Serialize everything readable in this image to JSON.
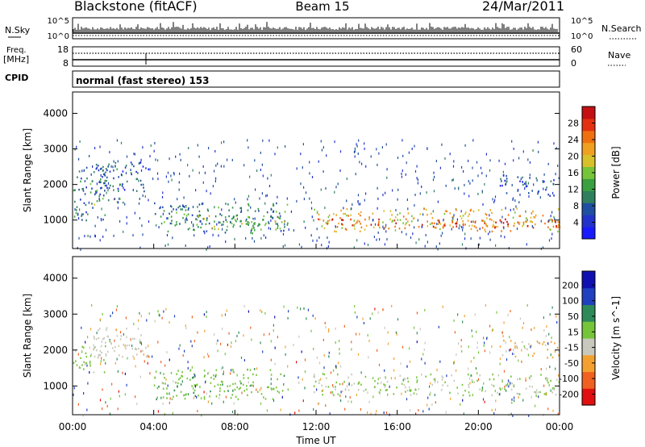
{
  "header": {
    "site": "Blackstone (fitACF)",
    "beam": "Beam 15",
    "date": "24/Mar/2011"
  },
  "noise_panel": {
    "left_label": "N.Sky",
    "right_label": "N.Search",
    "left_ticks": [
      "10^5",
      "10^0"
    ],
    "right_ticks": [
      "10^5",
      "10^0"
    ]
  },
  "freq_panel": {
    "left_label": "Freq.",
    "left_unit": "[MHz]",
    "right_label": "Nave",
    "left_ticks": [
      "18",
      "8"
    ],
    "right_ticks": [
      "60",
      "0"
    ]
  },
  "cpid_panel": {
    "label": "CPID",
    "mode_text": "normal (fast stereo) 153"
  },
  "chart_data": [
    {
      "type": "heatmap",
      "title": "",
      "ylabel": "Slant Range [km]",
      "xlabel": "Time UT",
      "x_ticks": [
        "00:00",
        "04:00",
        "08:00",
        "12:00",
        "16:00",
        "20:00",
        "00:00"
      ],
      "y_ticks": [
        "1000",
        "2000",
        "3000",
        "4000"
      ],
      "xlim_hours": [
        0,
        24
      ],
      "ylim_km": [
        200,
        4600
      ],
      "colorbar": {
        "label": "Power [dB]",
        "ticks": [
          "4",
          "8",
          "12",
          "16",
          "20",
          "24",
          "28"
        ],
        "range": [
          0,
          30
        ],
        "colors": [
          "#1a1aff",
          "#2233cc",
          "#1f4fa0",
          "#2f7f5f",
          "#3aa040",
          "#76c43a",
          "#d8c02a",
          "#f0a020",
          "#f07010",
          "#e43010",
          "#c41010"
        ]
      },
      "bands": [
        {
          "t0": 0.0,
          "t1": 1.6,
          "r0": 1000,
          "r1": 2600,
          "mean": 9
        },
        {
          "t0": 1.0,
          "t1": 3.8,
          "r0": 1800,
          "r1": 2650,
          "mean": 6
        },
        {
          "t0": 0.8,
          "t1": 2.5,
          "r0": 1450,
          "r1": 1650,
          "mean": 14
        },
        {
          "t0": 4.0,
          "t1": 10.6,
          "r0": 650,
          "r1": 1500,
          "mean": 10
        },
        {
          "t0": 6.0,
          "t1": 10.6,
          "r0": 750,
          "r1": 1150,
          "mean": 15
        },
        {
          "t0": 11.8,
          "t1": 24.0,
          "r0": 700,
          "r1": 1350,
          "mean": 19
        },
        {
          "t0": 12.0,
          "t1": 24.0,
          "r0": 800,
          "r1": 1050,
          "mean": 26
        },
        {
          "t0": 21.0,
          "t1": 24.0,
          "r0": 1700,
          "r1": 2300,
          "mean": 5
        }
      ]
    },
    {
      "type": "heatmap",
      "title": "",
      "ylabel": "Slant Range [km]",
      "xlabel": "Time UT",
      "x_ticks": [
        "00:00",
        "04:00",
        "08:00",
        "12:00",
        "16:00",
        "20:00",
        "00:00"
      ],
      "y_ticks": [
        "1000",
        "2000",
        "3000",
        "4000"
      ],
      "xlim_hours": [
        0,
        24
      ],
      "ylim_km": [
        200,
        4600
      ],
      "colorbar": {
        "label": "Velocity [m s^-1]",
        "ticks": [
          "200",
          "100",
          "50",
          "15",
          "-15",
          "-50",
          "-100",
          "-200"
        ],
        "range": [
          -250,
          250
        ],
        "colors": [
          "#e01010",
          "#f06020",
          "#f4a030",
          "#c8c8bc",
          "#76c43a",
          "#2f8a5a",
          "#2040c0",
          "#1010b0"
        ]
      },
      "bands": [
        {
          "t0": 0.0,
          "t1": 1.6,
          "r0": 1400,
          "r1": 2200,
          "mean": 0
        },
        {
          "t0": 1.0,
          "t1": 3.8,
          "r0": 1800,
          "r1": 2650,
          "mean": -30
        },
        {
          "t0": 4.0,
          "t1": 10.6,
          "r0": 650,
          "r1": 1500,
          "mean": 40
        },
        {
          "t0": 11.8,
          "t1": 24.0,
          "r0": 750,
          "r1": 1350,
          "mean": 0
        },
        {
          "t0": 21.0,
          "t1": 24.0,
          "r0": 1800,
          "r1": 2300,
          "mean": -60
        }
      ]
    }
  ]
}
